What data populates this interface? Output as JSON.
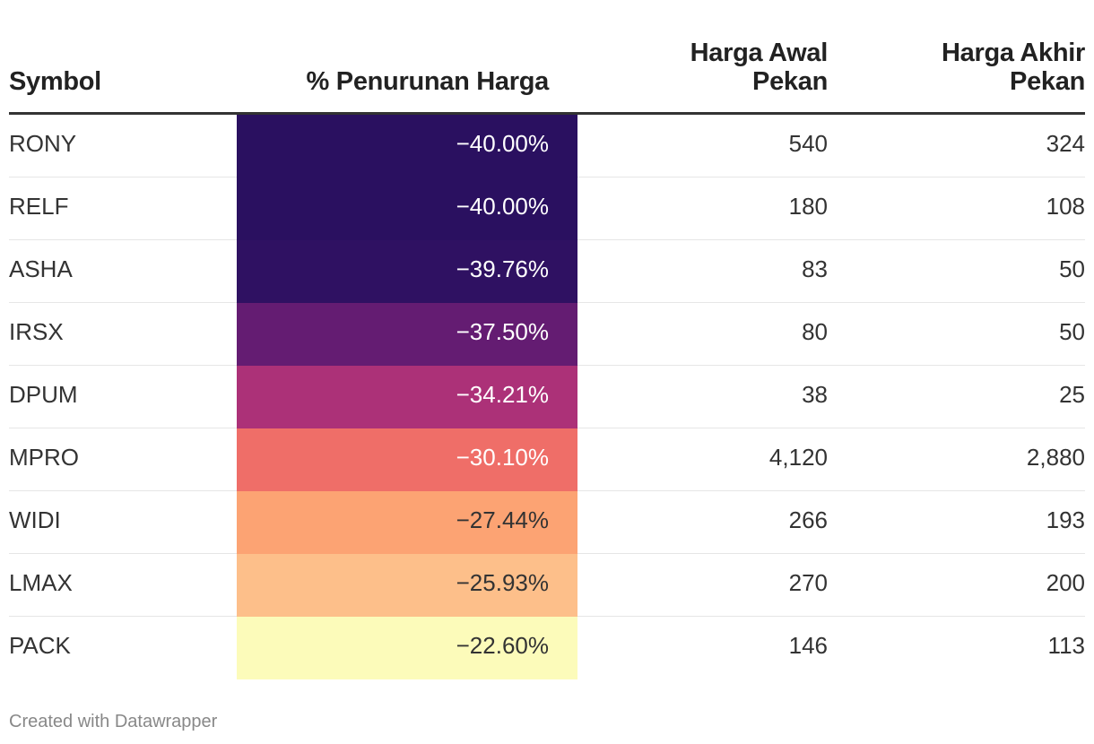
{
  "chart_data": {
    "type": "table",
    "columns": [
      "Symbol",
      "% Penurunan Harga",
      "Harga Awal Pekan",
      "Harga Akhir Pekan"
    ],
    "header": {
      "symbol": "Symbol",
      "pct": "% Penurunan Harga",
      "open_line1": "Harga Awal",
      "open_line2": "Pekan",
      "close_line1": "Harga Akhir",
      "close_line2": "Pekan"
    },
    "rows": [
      {
        "symbol": "RONY",
        "pct": -40.0,
        "pct_label": "−40.00%",
        "open": 540,
        "open_label": "540",
        "close": 324,
        "close_label": "324",
        "color": "#2a1060",
        "text_color": "#ffffff"
      },
      {
        "symbol": "RELF",
        "pct": -40.0,
        "pct_label": "−40.00%",
        "open": 180,
        "open_label": "180",
        "close": 108,
        "close_label": "108",
        "color": "#2a1060",
        "text_color": "#ffffff"
      },
      {
        "symbol": "ASHA",
        "pct": -39.76,
        "pct_label": "−39.76%",
        "open": 83,
        "open_label": "83",
        "close": 50,
        "close_label": "50",
        "color": "#2f1162",
        "text_color": "#ffffff"
      },
      {
        "symbol": "IRSX",
        "pct": -37.5,
        "pct_label": "−37.50%",
        "open": 80,
        "open_label": "80",
        "close": 50,
        "close_label": "50",
        "color": "#641c72",
        "text_color": "#ffffff"
      },
      {
        "symbol": "DPUM",
        "pct": -34.21,
        "pct_label": "−34.21%",
        "open": 38,
        "open_label": "38",
        "close": 25,
        "close_label": "25",
        "color": "#ac3178",
        "text_color": "#ffffff"
      },
      {
        "symbol": "MPRO",
        "pct": -30.1,
        "pct_label": "−30.10%",
        "open": 4120,
        "open_label": "4,120",
        "close": 2880,
        "close_label": "2,880",
        "color": "#ef6e68",
        "text_color": "#ffffff"
      },
      {
        "symbol": "WIDI",
        "pct": -27.44,
        "pct_label": "−27.44%",
        "open": 266,
        "open_label": "266",
        "close": 193,
        "close_label": "193",
        "color": "#fca373",
        "text_color": "#333333"
      },
      {
        "symbol": "LMAX",
        "pct": -25.93,
        "pct_label": "−25.93%",
        "open": 270,
        "open_label": "270",
        "close": 200,
        "close_label": "200",
        "color": "#fdbf8a",
        "text_color": "#333333"
      },
      {
        "symbol": "PACK",
        "pct": -22.6,
        "pct_label": "−22.60%",
        "open": 146,
        "open_label": "146",
        "close": 113,
        "close_label": "113",
        "color": "#fcfbba",
        "text_color": "#333333"
      }
    ]
  },
  "footer": {
    "credit": "Created with Datawrapper"
  }
}
